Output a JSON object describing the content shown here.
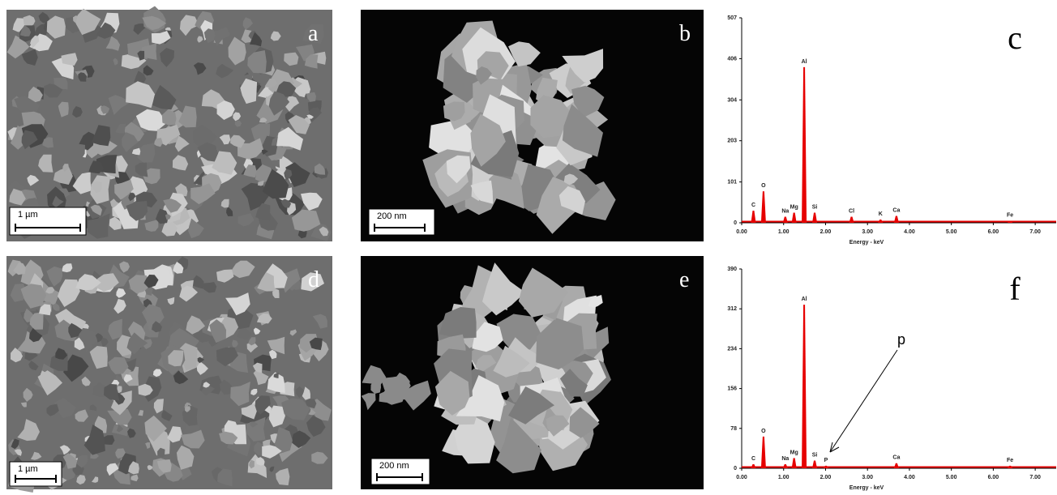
{
  "panels": [
    {
      "label": "a",
      "scale_bar": "1 µm"
    },
    {
      "label": "b",
      "scale_bar": "200 nm"
    },
    {
      "label": "d",
      "scale_bar": "1 µm"
    },
    {
      "label": "e",
      "scale_bar": "200 nm"
    }
  ],
  "chart_data": [
    {
      "type": "spectrum",
      "panel_label": "c",
      "x_label": "Energy - keV",
      "color": "#e60000",
      "xlim": [
        0,
        7.5
      ],
      "xticks": [
        {
          "value": 0,
          "label": "0.00"
        },
        {
          "value": 1,
          "label": "1.00"
        },
        {
          "value": 2,
          "label": "2.00"
        },
        {
          "value": 3,
          "label": "3.00"
        },
        {
          "value": 4,
          "label": "4.00"
        },
        {
          "value": 5,
          "label": "5.00"
        },
        {
          "value": 6,
          "label": "6.00"
        },
        {
          "value": 7,
          "label": "7.00"
        }
      ],
      "ylim": [
        0,
        507
      ],
      "yticks": [
        0,
        101,
        203,
        304,
        406,
        507
      ],
      "peaks": [
        {
          "label": "C",
          "x": 0.28,
          "y": 30
        },
        {
          "label": "O",
          "x": 0.52,
          "y": 78
        },
        {
          "label": "Na",
          "x": 1.04,
          "y": 15
        },
        {
          "label": "Mg",
          "x": 1.25,
          "y": 25
        },
        {
          "label": "Al",
          "x": 1.49,
          "y": 385
        },
        {
          "label": "Si",
          "x": 1.74,
          "y": 25
        },
        {
          "label": "Cl",
          "x": 2.62,
          "y": 15
        },
        {
          "label": "K",
          "x": 3.31,
          "y": 8
        },
        {
          "label": "Ca",
          "x": 3.69,
          "y": 17
        },
        {
          "label": "Fe",
          "x": 6.4,
          "y": 5
        }
      ]
    },
    {
      "type": "spectrum",
      "panel_label": "f",
      "x_label": "Energy - keV",
      "color": "#e60000",
      "annotation": "p",
      "xlim": [
        0,
        7.5
      ],
      "xticks": [
        {
          "value": 0,
          "label": "0.00"
        },
        {
          "value": 1,
          "label": "1.00"
        },
        {
          "value": 2,
          "label": "2.00"
        },
        {
          "value": 3,
          "label": "3.00"
        },
        {
          "value": 4,
          "label": "4.00"
        },
        {
          "value": 5,
          "label": "5.00"
        },
        {
          "value": 6,
          "label": "6.00"
        },
        {
          "value": 7,
          "label": "7.00"
        }
      ],
      "ylim": [
        0,
        390
      ],
      "yticks": [
        0,
        78,
        156,
        234,
        312,
        390
      ],
      "peaks": [
        {
          "label": "C",
          "x": 0.28,
          "y": 8
        },
        {
          "label": "O",
          "x": 0.52,
          "y": 62
        },
        {
          "label": "Na",
          "x": 1.04,
          "y": 8
        },
        {
          "label": "Mg",
          "x": 1.25,
          "y": 20
        },
        {
          "label": "Al",
          "x": 1.49,
          "y": 320
        },
        {
          "label": "Si",
          "x": 1.74,
          "y": 15
        },
        {
          "label": "P",
          "x": 2.01,
          "y": 5
        },
        {
          "label": "Ca",
          "x": 3.69,
          "y": 10
        },
        {
          "label": "Fe",
          "x": 6.4,
          "y": 5
        }
      ]
    }
  ]
}
